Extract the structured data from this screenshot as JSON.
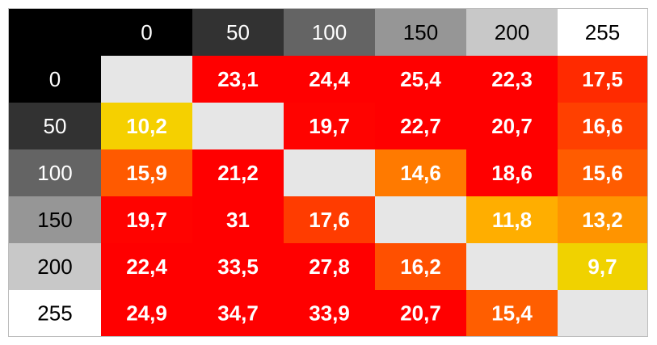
{
  "chart_data": {
    "type": "heatmap",
    "title": "",
    "column_labels": [
      "0",
      "50",
      "100",
      "150",
      "200",
      "255"
    ],
    "row_labels": [
      "0",
      "50",
      "100",
      "150",
      "200",
      "255"
    ],
    "header_gray_levels": [
      0,
      50,
      100,
      150,
      200,
      255
    ],
    "values": [
      [
        null,
        "23,1",
        "24,4",
        "25,4",
        "22,3",
        "17,5"
      ],
      [
        "10,2",
        null,
        "19,7",
        "22,7",
        "20,7",
        "16,6"
      ],
      [
        "15,9",
        "21,2",
        null,
        "14,6",
        "18,6",
        "15,6"
      ],
      [
        "19,7",
        "31",
        "17,6",
        null,
        "11,8",
        "13,2"
      ],
      [
        "22,4",
        "33,5",
        "27,8",
        "16,2",
        null,
        "9,7"
      ],
      [
        "24,9",
        "34,7",
        "33,9",
        "20,7",
        "15,4",
        null
      ]
    ],
    "cell_colors": [
      [
        "#e6e6e6",
        "#ff0000",
        "#ff0000",
        "#ff0000",
        "#ff0000",
        "#ff2a00"
      ],
      [
        "#f5d000",
        "#e6e6e6",
        "#ff0300",
        "#ff0000",
        "#ff0000",
        "#ff4000"
      ],
      [
        "#ff5a00",
        "#ff0000",
        "#e6e6e6",
        "#ff7a00",
        "#ff0000",
        "#ff5c00"
      ],
      [
        "#ff0300",
        "#ff0000",
        "#ff3c00",
        "#e6e6e6",
        "#ffae00",
        "#ff9400"
      ],
      [
        "#ff0000",
        "#ff0000",
        "#ff0000",
        "#ff5000",
        "#e6e6e6",
        "#f0d200"
      ],
      [
        "#ff0000",
        "#ff0000",
        "#ff0000",
        "#ff0000",
        "#ff5e00",
        "#e6e6e6"
      ]
    ],
    "diagonal_color": "#e6e6e6",
    "value_text_color": "#ffffff"
  }
}
